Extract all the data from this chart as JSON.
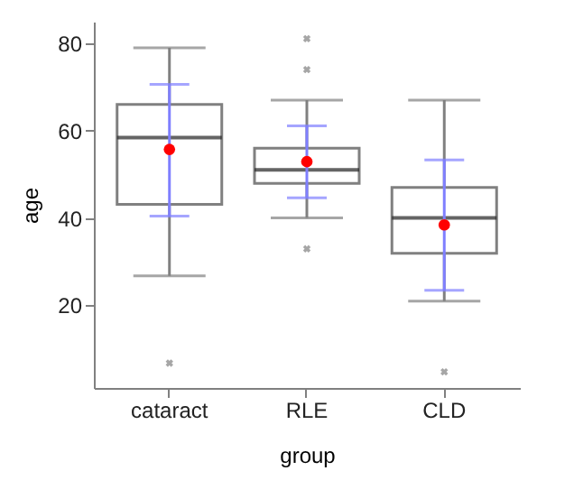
{
  "chart_data": {
    "type": "box",
    "xlabel": "group",
    "ylabel": "age",
    "categories": [
      "cataract",
      "RLE",
      "CLD"
    ],
    "ylim": [
      1,
      85
    ],
    "yticks": [
      20,
      40,
      60,
      80
    ],
    "grid": false,
    "boxes": [
      {
        "low": 26.7,
        "q1": 43.1,
        "median": 58.4,
        "q3": 66,
        "high": 79,
        "outliers": [
          6.7
        ]
      },
      {
        "low": 40,
        "q1": 47.9,
        "median": 51,
        "q3": 56,
        "high": 67,
        "outliers": [
          81.1,
          74,
          32.9
        ]
      },
      {
        "low": 20.9,
        "q1": 31.9,
        "median": 40,
        "q3": 47,
        "high": 67,
        "outliers": [
          4.7
        ]
      }
    ],
    "series": [
      {
        "type": "scatter",
        "color": "#ff0000",
        "x": [
          "cataract",
          "RLE",
          "CLD"
        ],
        "values": [
          55.7,
          52.9,
          38.4
        ],
        "errors": [
          [
            40.4,
            70.6
          ],
          [
            44.6,
            61.1
          ],
          [
            23.4,
            53.3
          ]
        ]
      }
    ]
  }
}
